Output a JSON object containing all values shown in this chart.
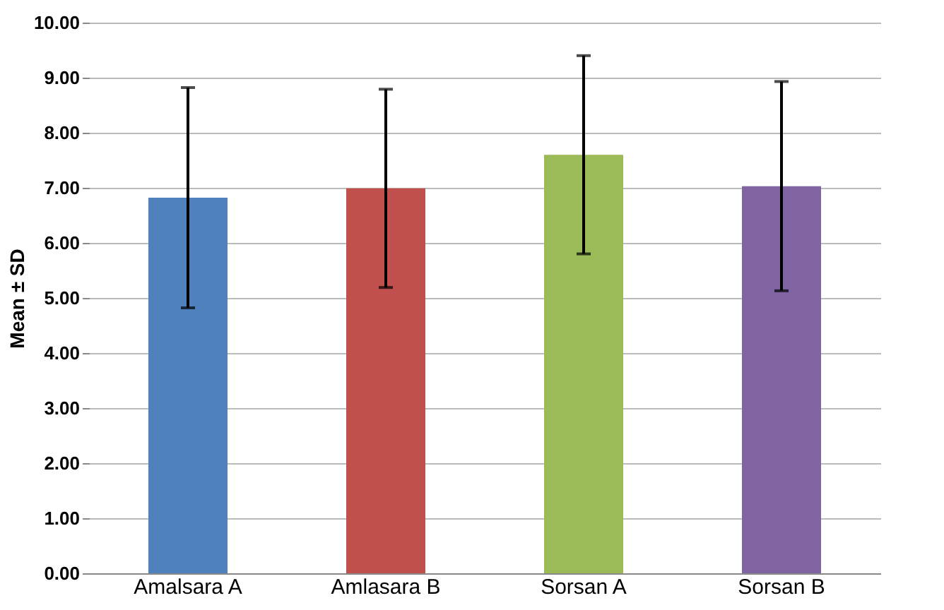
{
  "chart_data": {
    "type": "bar",
    "ylabel": "Mean ± SD",
    "categories": [
      "Amalsara A",
      "Amlasara B",
      "Sorsan A",
      "Sorsan B"
    ],
    "values": [
      6.82,
      6.99,
      7.6,
      7.03
    ],
    "errors": [
      2.0,
      1.8,
      1.8,
      1.9
    ],
    "colors": [
      "#4f81bd",
      "#c0504d",
      "#9bbb59",
      "#8064a2"
    ],
    "ylim": [
      0,
      10
    ],
    "yticks": [
      {
        "value": 0,
        "label": "0.00"
      },
      {
        "value": 1,
        "label": "1.00"
      },
      {
        "value": 2,
        "label": "2.00"
      },
      {
        "value": 3,
        "label": "3.00"
      },
      {
        "value": 4,
        "label": "4.00"
      },
      {
        "value": 5,
        "label": "5.00"
      },
      {
        "value": 6,
        "label": "6.00"
      },
      {
        "value": 7,
        "label": "7.00"
      },
      {
        "value": 8,
        "label": "8.00"
      },
      {
        "value": 9,
        "label": "9.00"
      },
      {
        "value": 10,
        "label": "10.00"
      }
    ],
    "grid": "y"
  }
}
